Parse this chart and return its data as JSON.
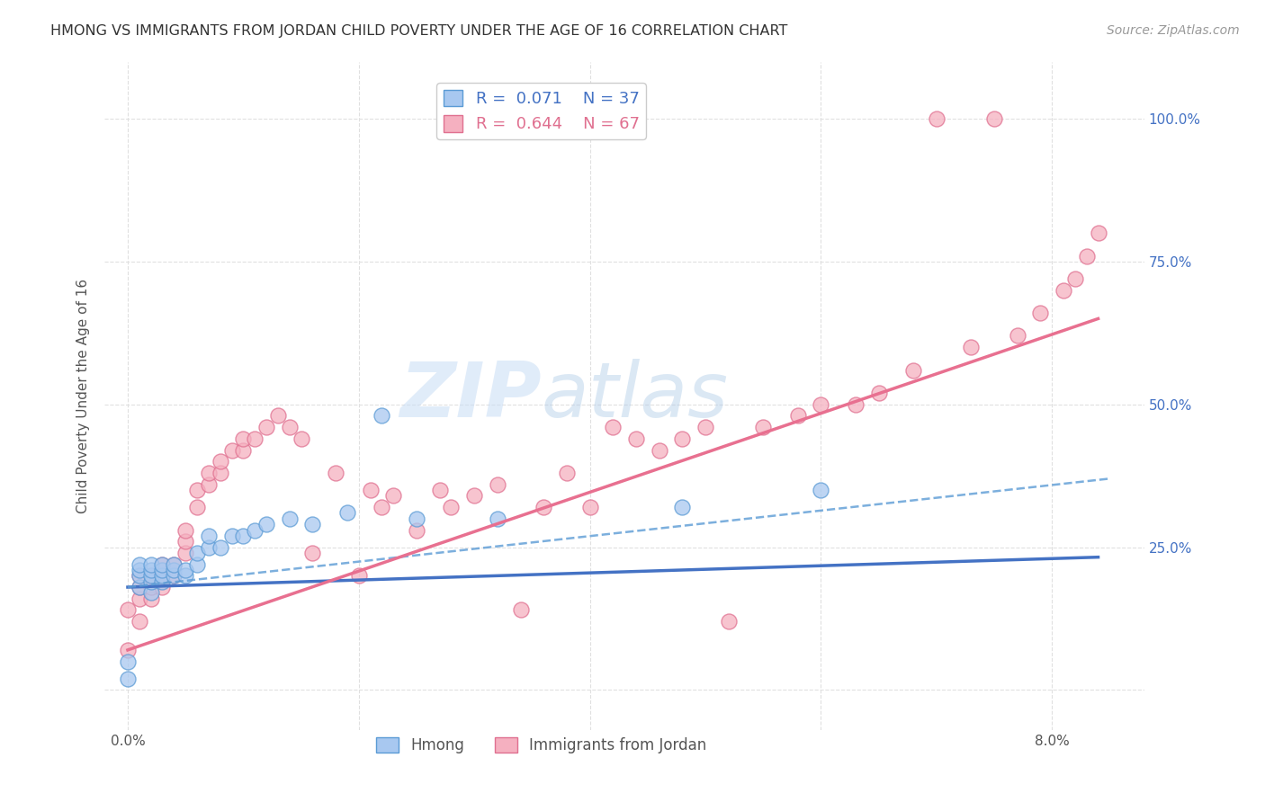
{
  "title": "HMONG VS IMMIGRANTS FROM JORDAN CHILD POVERTY UNDER THE AGE OF 16 CORRELATION CHART",
  "source": "Source: ZipAtlas.com",
  "ylabel": "Child Poverty Under the Age of 16",
  "xlim": [
    -0.002,
    0.088
  ],
  "ylim": [
    -0.07,
    1.1
  ],
  "hmong_color": "#a8c8f0",
  "jordan_color": "#f5b0c0",
  "hmong_edge_color": "#5b9bd5",
  "jordan_edge_color": "#e07090",
  "hmong_line_color": "#4472c4",
  "jordan_line_color": "#e87090",
  "R_hmong": 0.071,
  "N_hmong": 37,
  "R_jordan": 0.644,
  "N_jordan": 67,
  "watermark_zip": "ZIP",
  "watermark_atlas": "atlas",
  "grid_color": "#e0e0e0",
  "background_color": "#ffffff",
  "hmong_x": [
    0.0,
    0.0,
    0.001,
    0.001,
    0.001,
    0.001,
    0.002,
    0.002,
    0.002,
    0.002,
    0.002,
    0.003,
    0.003,
    0.003,
    0.003,
    0.004,
    0.004,
    0.004,
    0.005,
    0.005,
    0.006,
    0.006,
    0.007,
    0.007,
    0.008,
    0.009,
    0.01,
    0.011,
    0.012,
    0.014,
    0.016,
    0.019,
    0.022,
    0.025,
    0.032,
    0.048,
    0.06
  ],
  "hmong_y": [
    0.02,
    0.05,
    0.18,
    0.2,
    0.21,
    0.22,
    0.17,
    0.19,
    0.2,
    0.21,
    0.22,
    0.19,
    0.2,
    0.21,
    0.22,
    0.2,
    0.21,
    0.22,
    0.2,
    0.21,
    0.22,
    0.24,
    0.25,
    0.27,
    0.25,
    0.27,
    0.27,
    0.28,
    0.29,
    0.3,
    0.29,
    0.31,
    0.48,
    0.3,
    0.3,
    0.32,
    0.35
  ],
  "jordan_x": [
    0.0,
    0.0,
    0.001,
    0.001,
    0.001,
    0.001,
    0.002,
    0.002,
    0.002,
    0.003,
    0.003,
    0.003,
    0.004,
    0.004,
    0.005,
    0.005,
    0.005,
    0.006,
    0.006,
    0.007,
    0.007,
    0.008,
    0.008,
    0.009,
    0.01,
    0.01,
    0.011,
    0.012,
    0.013,
    0.014,
    0.015,
    0.016,
    0.018,
    0.02,
    0.021,
    0.022,
    0.023,
    0.025,
    0.027,
    0.028,
    0.03,
    0.032,
    0.034,
    0.036,
    0.038,
    0.04,
    0.042,
    0.044,
    0.046,
    0.048,
    0.05,
    0.052,
    0.055,
    0.058,
    0.06,
    0.063,
    0.065,
    0.068,
    0.07,
    0.073,
    0.075,
    0.077,
    0.079,
    0.081,
    0.082,
    0.083,
    0.084
  ],
  "jordan_y": [
    0.07,
    0.14,
    0.12,
    0.16,
    0.18,
    0.2,
    0.16,
    0.18,
    0.2,
    0.18,
    0.2,
    0.22,
    0.2,
    0.22,
    0.24,
    0.26,
    0.28,
    0.32,
    0.35,
    0.36,
    0.38,
    0.38,
    0.4,
    0.42,
    0.42,
    0.44,
    0.44,
    0.46,
    0.48,
    0.46,
    0.44,
    0.24,
    0.38,
    0.2,
    0.35,
    0.32,
    0.34,
    0.28,
    0.35,
    0.32,
    0.34,
    0.36,
    0.14,
    0.32,
    0.38,
    0.32,
    0.46,
    0.44,
    0.42,
    0.44,
    0.46,
    0.12,
    0.46,
    0.48,
    0.5,
    0.5,
    0.52,
    0.56,
    1.0,
    0.6,
    1.0,
    0.62,
    0.66,
    0.7,
    0.72,
    0.76,
    0.8
  ]
}
